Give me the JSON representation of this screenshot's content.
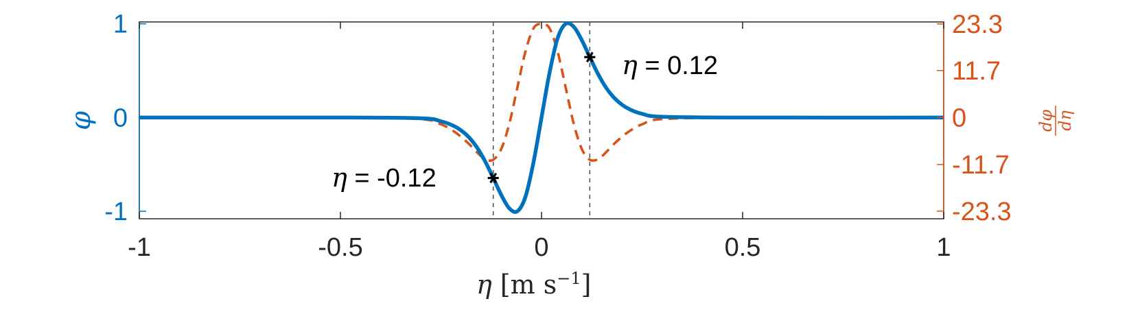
{
  "chart_data": {
    "type": "line",
    "title": "",
    "xlabel": {
      "symbol": "η",
      "unit_text": "m s",
      "unit_exp": "−1"
    },
    "ylabel_left": "φ",
    "ylabel_right": {
      "numerator": "dφ",
      "denominator": "dη"
    },
    "xlim": [
      -1,
      1
    ],
    "ylim_left": [
      -1.08,
      1.02
    ],
    "ylim_right": [
      -25.2,
      23.8
    ],
    "x_ticks": [
      -1,
      -0.5,
      0,
      0.5,
      1
    ],
    "x_tick_labels": [
      "-1",
      "-0.5",
      "0",
      "0.5",
      "1"
    ],
    "y_left_ticks": [
      -1,
      0,
      1
    ],
    "y_left_tick_labels": [
      "-1",
      "0",
      "1"
    ],
    "y_right_ticks": [
      -23.3,
      -11.7,
      0,
      11.7,
      23.3
    ],
    "y_right_tick_labels": [
      "-23.3",
      "-11.7",
      "0",
      "11.7",
      "23.3"
    ],
    "grid": false,
    "series": [
      {
        "axis": "left",
        "style": "solid",
        "color": "#0072BD",
        "x": [
          -1,
          -0.5,
          -0.3,
          -0.25,
          -0.22,
          -0.2,
          -0.18,
          -0.16,
          -0.14,
          -0.12,
          -0.1,
          -0.08,
          -0.06,
          -0.04,
          -0.02,
          0,
          0.02,
          0.04,
          0.06,
          0.08,
          0.1,
          0.12,
          0.14,
          0.16,
          0.18,
          0.2,
          0.22,
          0.25,
          0.3,
          0.5,
          1
        ],
        "y": [
          0,
          0,
          -0.008,
          -0.04,
          -0.086,
          -0.137,
          -0.213,
          -0.322,
          -0.469,
          -0.645,
          -0.827,
          -0.969,
          -1.0,
          -0.846,
          -0.479,
          0,
          0.479,
          0.846,
          1.0,
          0.969,
          0.827,
          0.645,
          0.469,
          0.322,
          0.213,
          0.137,
          0.086,
          0.04,
          0.008,
          0,
          0
        ]
      },
      {
        "axis": "right",
        "style": "dashed",
        "color": "#D95319",
        "x": [
          -1,
          -0.5,
          -0.3,
          -0.25,
          -0.22,
          -0.2,
          -0.18,
          -0.16,
          -0.14,
          -0.12,
          -0.1,
          -0.08,
          -0.06,
          -0.04,
          -0.02,
          0,
          0.02,
          0.04,
          0.06,
          0.08,
          0.1,
          0.12,
          0.14,
          0.16,
          0.18,
          0.2,
          0.22,
          0.25,
          0.3,
          0.5,
          1
        ],
        "y": [
          0,
          0,
          -0.4,
          -1.7,
          -3.3,
          -4.8,
          -6.6,
          -8.7,
          -10.4,
          -10.5,
          -7.8,
          -1.5,
          7.5,
          16.4,
          22.2,
          23.3,
          22.2,
          16.4,
          7.5,
          -1.5,
          -7.8,
          -10.5,
          -10.4,
          -8.7,
          -6.6,
          -4.8,
          -3.3,
          -1.7,
          -0.4,
          0,
          0
        ]
      }
    ],
    "markers": [
      {
        "x": -0.12,
        "y": -0.645,
        "axis": "left"
      },
      {
        "x": 0.12,
        "y": 0.645,
        "axis": "left"
      }
    ],
    "vlines": [
      -0.12,
      0.12
    ],
    "annotations": [
      {
        "symbol": "η",
        "text": " = -0.12"
      },
      {
        "symbol": "η",
        "text": " = 0.12"
      }
    ]
  }
}
